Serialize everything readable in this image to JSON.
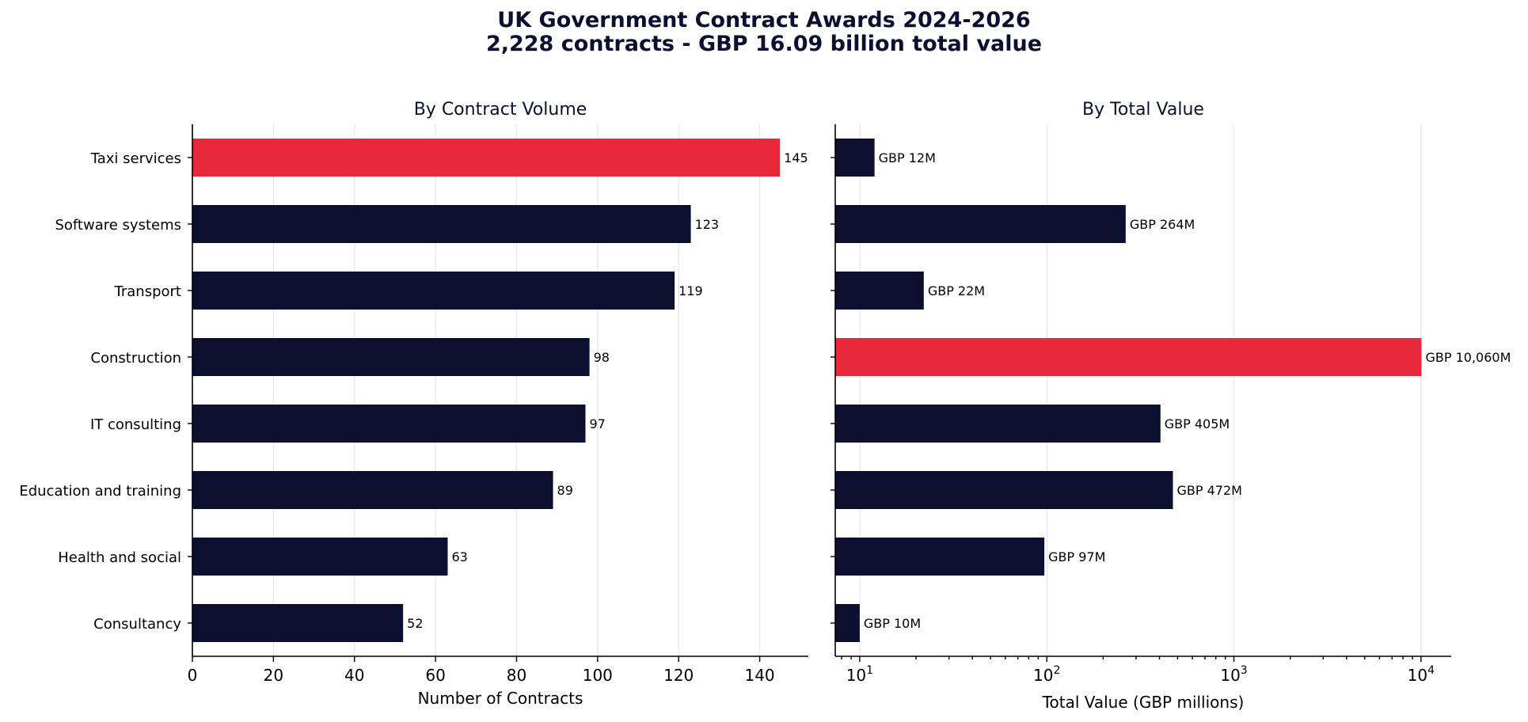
{
  "figure": {
    "title_line1": "UK Government Contract Awards 2024-2026",
    "title_line2": "2,228 contracts - GBP 16.09 billion total value"
  },
  "colors": {
    "primary": "#0c1030",
    "highlight": "#e8293b"
  },
  "chart_data": [
    {
      "type": "bar",
      "orientation": "horizontal",
      "title": "By Contract Volume",
      "xlabel": "Number of Contracts",
      "ylabel": "",
      "xscale": "linear",
      "xlim": [
        0,
        152
      ],
      "xticks": [
        0,
        20,
        40,
        60,
        80,
        100,
        120,
        140
      ],
      "grid": "vertical",
      "categories": [
        "Taxi services",
        "Software systems",
        "Transport",
        "Construction",
        "IT consulting",
        "Education and training",
        "Health and social",
        "Consultancy"
      ],
      "values": [
        145,
        123,
        119,
        98,
        97,
        89,
        63,
        52
      ],
      "labels": [
        "145",
        "123",
        "119",
        "98",
        "97",
        "89",
        "63",
        "52"
      ],
      "highlight_index": 0
    },
    {
      "type": "bar",
      "orientation": "horizontal",
      "title": "By Total Value",
      "xlabel": "Total Value (GBP millions)",
      "ylabel": "",
      "xscale": "log",
      "xlim": [
        7.4,
        14500
      ],
      "xticks": [
        10,
        100,
        1000,
        10000
      ],
      "xtick_labels": [
        {
          "base": "10",
          "exp": "1"
        },
        {
          "base": "10",
          "exp": "2"
        },
        {
          "base": "10",
          "exp": "3"
        },
        {
          "base": "10",
          "exp": "4"
        }
      ],
      "grid": "vertical",
      "categories": [
        "Taxi services",
        "Software systems",
        "Transport",
        "Construction",
        "IT consulting",
        "Education and training",
        "Health and social",
        "Consultancy"
      ],
      "values": [
        12,
        264,
        22,
        10060,
        405,
        472,
        97,
        10
      ],
      "labels": [
        "GBP 12M",
        "GBP 264M",
        "GBP 22M",
        "GBP 10,060M",
        "GBP 405M",
        "GBP 472M",
        "GBP 97M",
        "GBP 10M"
      ],
      "highlight_index": 3
    }
  ]
}
